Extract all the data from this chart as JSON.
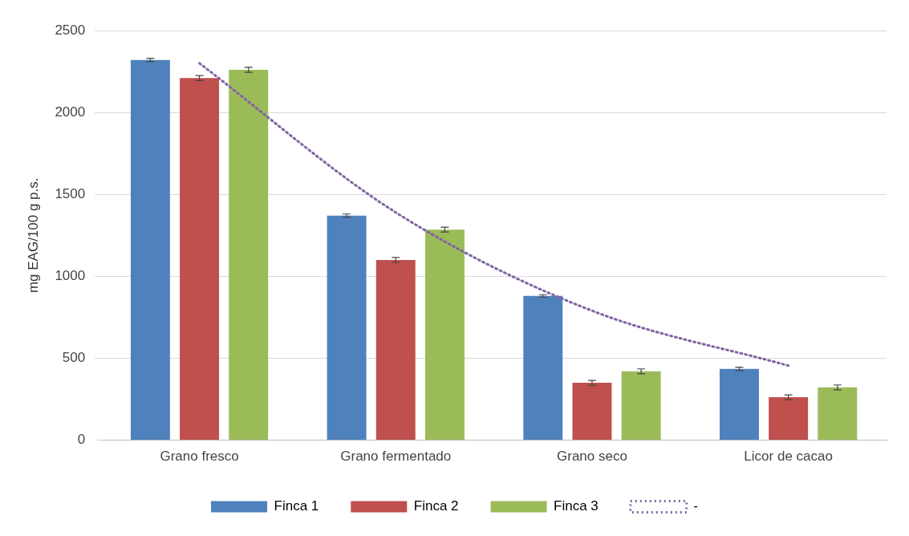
{
  "chart_data": {
    "type": "bar",
    "ylabel": "mg EAG/100 g p.s.",
    "categories": [
      "Grano fresco",
      "Grano fermentado",
      "Grano seco",
      "Licor de cacao"
    ],
    "series": [
      {
        "name": "Finca 1",
        "color": "#4f81bd",
        "values": [
          2320,
          1370,
          880,
          435
        ],
        "errors": [
          10,
          10,
          8,
          10
        ]
      },
      {
        "name": "Finca 2",
        "color": "#c0504d",
        "values": [
          2210,
          1100,
          350,
          262
        ],
        "errors": [
          15,
          15,
          15,
          15
        ]
      },
      {
        "name": "Finca 3",
        "color": "#9bbb59",
        "values": [
          2260,
          1285,
          420,
          322
        ],
        "errors": [
          15,
          15,
          15,
          15
        ]
      },
      {
        "name": "-",
        "type": "line",
        "color": "#8064a2",
        "line_style": "dotted",
        "marker": "none",
        "values": [
          2300,
          1390,
          790,
          455
        ]
      }
    ],
    "ylim": [
      0,
      2500
    ],
    "yticks": [
      0,
      500,
      1000,
      1500,
      2000,
      2500
    ],
    "grid": "y",
    "legend": "bottom"
  }
}
